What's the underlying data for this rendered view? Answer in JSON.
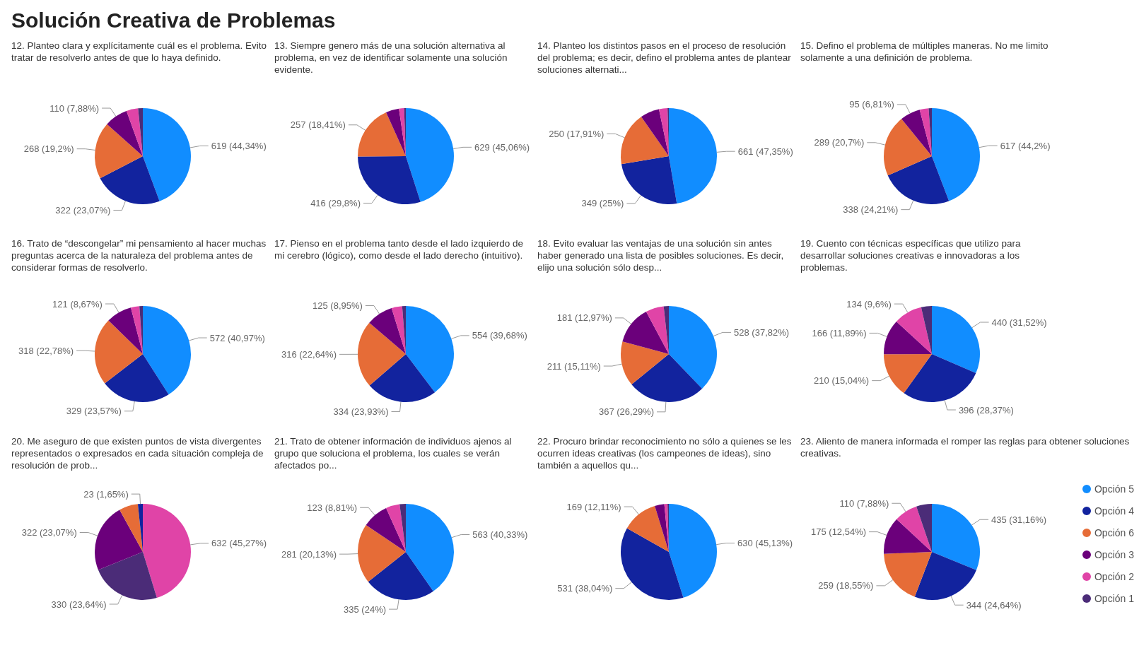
{
  "chart_data": [
    {
      "type": "pie",
      "title": "Solución Creativa de Problemas",
      "subtitle": "12. Planteo clara y explícitamente cuál es el problema. Evito tratar de resolverlo antes de que lo haya definido.",
      "categories": [
        null,
        null,
        null,
        null,
        null,
        null
      ],
      "values": [
        619,
        322,
        268,
        110,
        55,
        22
      ],
      "colors": [
        "#118dff",
        "#12239e",
        "#e66c37",
        "#6b007b",
        "#e044a7",
        "#4b2c78"
      ],
      "value_labels": [
        "619 (44,34%)",
        "322 (23,07%)",
        "268 (19,2%)",
        "110 (7,88%)",
        null,
        null
      ]
    },
    {
      "type": "pie",
      "subtitle": "13. Siempre genero más de una solución alternativa al problema, en vez de identificar solamente una solución evidente.",
      "categories": [
        null,
        null,
        null,
        null,
        null,
        null
      ],
      "values": [
        629,
        416,
        257,
        62,
        24,
        8
      ],
      "colors": [
        "#118dff",
        "#12239e",
        "#e66c37",
        "#6b007b",
        "#e044a7",
        "#4b2c78"
      ],
      "value_labels": [
        "629 (45,06%)",
        "416 (29,8%)",
        "257 (18,41%)",
        null,
        null,
        null
      ]
    },
    {
      "type": "pie",
      "subtitle": "14. Planteo los distintos pasos en el proceso de resolución del problema; es decir, defino el problema antes de plantear soluciones alternati...",
      "categories": [
        null,
        null,
        null,
        null,
        null,
        null
      ],
      "values": [
        661,
        349,
        250,
        90,
        40,
        6
      ],
      "colors": [
        "#118dff",
        "#12239e",
        "#e66c37",
        "#6b007b",
        "#e044a7",
        "#4b2c78"
      ],
      "value_labels": [
        "661 (47,35%)",
        "349 (25%)",
        "250 (17,91%)",
        null,
        null,
        null
      ]
    },
    {
      "type": "pie",
      "subtitle": "15. Defino el problema de múltiples maneras. No me limito solamente a una definición de problema.",
      "categories": [
        null,
        null,
        null,
        null,
        null,
        null
      ],
      "values": [
        617,
        338,
        289,
        95,
        42,
        15
      ],
      "colors": [
        "#118dff",
        "#12239e",
        "#e66c37",
        "#6b007b",
        "#e044a7",
        "#4b2c78"
      ],
      "value_labels": [
        "617 (44,2%)",
        "338 (24,21%)",
        "289 (20,7%)",
        "95 (6,81%)",
        null,
        null
      ]
    },
    {
      "type": "pie",
      "subtitle": "16. Trato de “descongelar” mi pensamiento al hacer muchas preguntas acerca de la naturaleza del problema antes de considerar formas de resolverlo.",
      "categories": [
        null,
        null,
        null,
        null,
        null,
        null
      ],
      "values": [
        572,
        329,
        318,
        121,
        40,
        16
      ],
      "colors": [
        "#118dff",
        "#12239e",
        "#e66c37",
        "#6b007b",
        "#e044a7",
        "#4b2c78"
      ],
      "value_labels": [
        "572 (40,97%)",
        "329 (23,57%)",
        "318 (22,78%)",
        "121 (8,67%)",
        null,
        null
      ]
    },
    {
      "type": "pie",
      "subtitle": "17. Pienso en el problema tanto desde el lado izquierdo de mi cerebro (lógico), como desde el lado derecho (intuitivo).",
      "categories": [
        null,
        null,
        null,
        null,
        null,
        null
      ],
      "values": [
        554,
        334,
        316,
        125,
        50,
        17
      ],
      "colors": [
        "#118dff",
        "#12239e",
        "#e66c37",
        "#6b007b",
        "#e044a7",
        "#4b2c78"
      ],
      "value_labels": [
        "554 (39,68%)",
        "334 (23,93%)",
        "316 (22,64%)",
        "125 (8,95%)",
        null,
        null
      ]
    },
    {
      "type": "pie",
      "subtitle": "18. Evito evaluar las ventajas de una solución sin antes haber generado una lista de posibles soluciones. Es decir, elijo una solución sólo desp...",
      "categories": [
        null,
        null,
        null,
        null,
        null,
        null
      ],
      "values": [
        528,
        367,
        211,
        181,
        85,
        24
      ],
      "colors": [
        "#118dff",
        "#12239e",
        "#e66c37",
        "#6b007b",
        "#e044a7",
        "#4b2c78"
      ],
      "value_labels": [
        "528 (37,82%)",
        "367 (26,29%)",
        "211 (15,11%)",
        "181 (12,97%)",
        null,
        null
      ]
    },
    {
      "type": "pie",
      "subtitle": "19. Cuento con técnicas específicas que utilizo para desarrollar soluciones creativas e innovadoras a los problemas.",
      "categories": [
        null,
        null,
        null,
        null,
        null,
        null
      ],
      "values": [
        440,
        396,
        210,
        166,
        134,
        50
      ],
      "colors": [
        "#118dff",
        "#12239e",
        "#e66c37",
        "#6b007b",
        "#e044a7",
        "#4b2c78"
      ],
      "value_labels": [
        "440 (31,52%)",
        "396 (28,37%)",
        "210 (15,04%)",
        "166 (11,89%)",
        "134 (9,6%)",
        null
      ]
    },
    {
      "type": "pie",
      "subtitle": "20. Me aseguro de que existen puntos de vista divergentes representados o expresados en cada situación compleja de resolución de prob...",
      "categories": [
        null,
        null,
        null,
        null,
        null
      ],
      "values": [
        632,
        330,
        322,
        89,
        23
      ],
      "colors": [
        "#e044a7",
        "#4b2c78",
        "#6b007b",
        "#e66c37",
        "#12239e"
      ],
      "value_labels": [
        "632 (45,27%)",
        "330 (23,64%)",
        "322 (23,07%)",
        null,
        "23 (1,65%)"
      ]
    },
    {
      "type": "pie",
      "subtitle": "21. Trato de obtener información de individuos ajenos al grupo que soluciona el problema, los cuales se verán afectados po...",
      "categories": [
        null,
        null,
        null,
        null,
        null,
        null
      ],
      "values": [
        563,
        335,
        281,
        123,
        65,
        29
      ],
      "colors": [
        "#118dff",
        "#12239e",
        "#e66c37",
        "#6b007b",
        "#e044a7",
        "#4b2c78"
      ],
      "value_labels": [
        "563 (40,33%)",
        "335 (24%)",
        "281 (20,13%)",
        "123 (8,81%)",
        null,
        null
      ]
    },
    {
      "type": "pie",
      "subtitle": "22. Procuro brindar reconocimiento no sólo a quienes se les ocurren ideas creativas (los campeones de ideas), sino también a aquellos qu...",
      "categories": [
        null,
        null,
        null,
        null,
        null,
        null
      ],
      "values": [
        630,
        531,
        169,
        45,
        15,
        6
      ],
      "colors": [
        "#118dff",
        "#12239e",
        "#e66c37",
        "#6b007b",
        "#e044a7",
        "#4b2c78"
      ],
      "value_labels": [
        "630 (45,13%)",
        "531 (38,04%)",
        "169 (12,11%)",
        null,
        null,
        null
      ]
    },
    {
      "type": "pie",
      "subtitle": "23. Aliento de manera informada el romper las reglas para obtener soluciones creativas.",
      "categories": [
        "Opción 5",
        "Opción 4",
        "Opción 6",
        "Opción 3",
        "Opción 2",
        "Opción 1"
      ],
      "values": [
        435,
        344,
        259,
        175,
        110,
        73
      ],
      "colors": [
        "#118dff",
        "#12239e",
        "#e66c37",
        "#6b007b",
        "#e044a7",
        "#4b2c78"
      ],
      "value_labels": [
        "435 (31,16%)",
        "344 (24,64%)",
        "259 (18,55%)",
        "175 (12,54%)",
        "110 (7,88%)",
        null
      ],
      "legend": "right"
    }
  ]
}
